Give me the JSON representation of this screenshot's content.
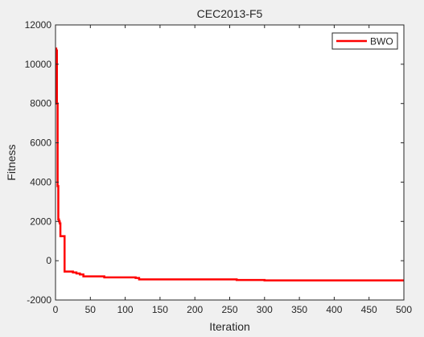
{
  "chart_data": {
    "type": "line",
    "title": "CEC2013-F5",
    "xlabel": "Iteration",
    "ylabel": "Fitness",
    "xlim": [
      0,
      500
    ],
    "ylim": [
      -2000,
      12000
    ],
    "xticks": [
      0,
      50,
      100,
      150,
      200,
      250,
      300,
      350,
      400,
      450,
      500
    ],
    "yticks": [
      -2000,
      0,
      2000,
      4000,
      6000,
      8000,
      10000,
      12000
    ],
    "grid": false,
    "legend_position": "top-right",
    "series": [
      {
        "name": "BWO",
        "color": "#ff0000",
        "step": true,
        "x": [
          0,
          1,
          2,
          3,
          4,
          5,
          6,
          7,
          9,
          12,
          13,
          25,
          30,
          35,
          40,
          60,
          70,
          100,
          110,
          115,
          120,
          200,
          250,
          260,
          300,
          500
        ],
        "y": [
          10800,
          10700,
          8000,
          3800,
          2100,
          2000,
          1900,
          1250,
          1250,
          1250,
          -550,
          -600,
          -650,
          -700,
          -800,
          -800,
          -850,
          -850,
          -850,
          -880,
          -950,
          -950,
          -950,
          -980,
          -1000,
          -1000
        ]
      }
    ]
  }
}
